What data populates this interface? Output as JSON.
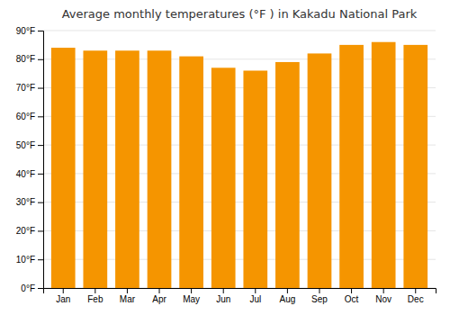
{
  "chart_data": {
    "type": "bar",
    "title": "Average monthly temperatures (°F ) in Kakadu National Park",
    "categories": [
      "Jan",
      "Feb",
      "Mar",
      "Apr",
      "May",
      "Jun",
      "Jul",
      "Aug",
      "Sep",
      "Oct",
      "Nov",
      "Dec"
    ],
    "values": [
      84,
      83,
      83,
      83,
      81,
      77,
      76,
      79,
      82,
      85,
      86,
      85
    ],
    "color": "#F59500",
    "ylim": [
      0,
      90
    ],
    "yticks": [
      {
        "value": 0,
        "label": "0°F"
      },
      {
        "value": 10,
        "label": "10°F"
      },
      {
        "value": 20,
        "label": "20°F"
      },
      {
        "value": 30,
        "label": "30°F"
      },
      {
        "value": 40,
        "label": "40°F"
      },
      {
        "value": 50,
        "label": "50°F"
      },
      {
        "value": 60,
        "label": "60°F"
      },
      {
        "value": 70,
        "label": "70°F"
      },
      {
        "value": 80,
        "label": "80°F"
      },
      {
        "value": 90,
        "label": "90°F"
      }
    ],
    "grid": true
  }
}
